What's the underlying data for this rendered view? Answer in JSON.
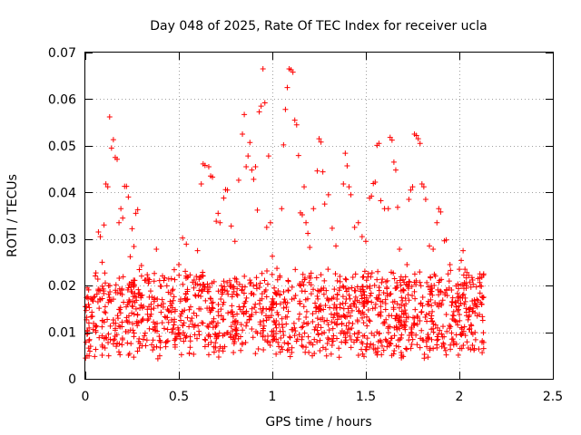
{
  "chart_data": {
    "type": "scatter",
    "title": "Day 048 of 2025, Rate Of TEC Index for receiver ucla",
    "xlabel": "GPS time / hours",
    "ylabel": "ROTI / TECUs",
    "xlim": [
      0,
      2.5
    ],
    "ylim": [
      0,
      0.07
    ],
    "xticks": [
      "0",
      "0.5",
      "1",
      "1.5",
      "2",
      "2.5"
    ],
    "xtick_values": [
      0,
      0.5,
      1,
      1.5,
      2,
      2.5
    ],
    "yticks": [
      "0",
      "0.01",
      "0.02",
      "0.03",
      "0.04",
      "0.05",
      "0.06",
      "0.07"
    ],
    "ytick_values": [
      0,
      0.01,
      0.02,
      0.03,
      0.04,
      0.05,
      0.06,
      0.07
    ],
    "grid": true,
    "marker": "+",
    "color": "#ff0000",
    "series": [
      {
        "points": [
          [
            0.0,
            0.0155
          ],
          [
            0.01,
            0.0195
          ],
          [
            0.02,
            0.0082
          ],
          [
            0.03,
            0.0133
          ],
          [
            0.04,
            0.0167
          ],
          [
            0.02,
            0.0049
          ],
          [
            0.05,
            0.0048
          ],
          [
            0.06,
            0.0113
          ],
          [
            0.07,
            0.0315
          ],
          [
            0.08,
            0.0305
          ],
          [
            0.09,
            0.025
          ],
          [
            0.1,
            0.033
          ],
          [
            0.11,
            0.0418
          ],
          [
            0.12,
            0.0412
          ],
          [
            0.13,
            0.0562
          ],
          [
            0.14,
            0.0495
          ],
          [
            0.15,
            0.0513
          ],
          [
            0.16,
            0.0475
          ],
          [
            0.17,
            0.0471
          ],
          [
            0.18,
            0.0335
          ],
          [
            0.19,
            0.0365
          ],
          [
            0.2,
            0.0345
          ],
          [
            0.21,
            0.0413
          ],
          [
            0.22,
            0.0413
          ],
          [
            0.23,
            0.039
          ],
          [
            0.24,
            0.0262
          ],
          [
            0.25,
            0.0322
          ],
          [
            0.26,
            0.0284
          ],
          [
            0.27,
            0.0355
          ],
          [
            0.28,
            0.0363
          ],
          [
            0.3,
            0.0243
          ],
          [
            0.32,
            0.0098
          ],
          [
            0.34,
            0.0155
          ],
          [
            0.36,
            0.0062
          ],
          [
            0.38,
            0.0278
          ],
          [
            0.4,
            0.0082
          ],
          [
            0.42,
            0.0211
          ],
          [
            0.44,
            0.0106
          ],
          [
            0.46,
            0.0143
          ],
          [
            0.48,
            0.0073
          ],
          [
            0.5,
            0.0245
          ],
          [
            0.52,
            0.0302
          ],
          [
            0.54,
            0.0289
          ],
          [
            0.56,
            0.0223
          ],
          [
            0.58,
            0.0195
          ],
          [
            0.6,
            0.0275
          ],
          [
            0.62,
            0.0418
          ],
          [
            0.63,
            0.0461
          ],
          [
            0.64,
            0.0458
          ],
          [
            0.66,
            0.0455
          ],
          [
            0.67,
            0.0435
          ],
          [
            0.68,
            0.0433
          ],
          [
            0.7,
            0.0338
          ],
          [
            0.71,
            0.0355
          ],
          [
            0.72,
            0.0335
          ],
          [
            0.74,
            0.0388
          ],
          [
            0.75,
            0.0406
          ],
          [
            0.76,
            0.0405
          ],
          [
            0.78,
            0.0328
          ],
          [
            0.8,
            0.0295
          ],
          [
            0.82,
            0.0426
          ],
          [
            0.84,
            0.0525
          ],
          [
            0.85,
            0.0567
          ],
          [
            0.86,
            0.0455
          ],
          [
            0.87,
            0.0478
          ],
          [
            0.88,
            0.0507
          ],
          [
            0.89,
            0.0448
          ],
          [
            0.9,
            0.0428
          ],
          [
            0.91,
            0.0455
          ],
          [
            0.92,
            0.0362
          ],
          [
            0.93,
            0.0573
          ],
          [
            0.94,
            0.0585
          ],
          [
            0.95,
            0.0665
          ],
          [
            0.96,
            0.0592
          ],
          [
            0.97,
            0.0325
          ],
          [
            0.98,
            0.0478
          ],
          [
            0.99,
            0.0335
          ],
          [
            1.0,
            0.0263
          ],
          [
            1.01,
            0.0195
          ],
          [
            1.02,
            0.0053
          ],
          [
            1.03,
            0.0078
          ],
          [
            1.04,
            0.0221
          ],
          [
            1.05,
            0.0365
          ],
          [
            1.06,
            0.0502
          ],
          [
            1.07,
            0.0578
          ],
          [
            1.08,
            0.0625
          ],
          [
            1.09,
            0.0665
          ],
          [
            1.1,
            0.0663
          ],
          [
            1.11,
            0.0658
          ],
          [
            1.12,
            0.0555
          ],
          [
            1.13,
            0.0545
          ],
          [
            1.14,
            0.0479
          ],
          [
            1.15,
            0.0356
          ],
          [
            1.16,
            0.0352
          ],
          [
            1.17,
            0.0412
          ],
          [
            1.18,
            0.0335
          ],
          [
            1.19,
            0.0312
          ],
          [
            1.2,
            0.0282
          ],
          [
            1.22,
            0.0365
          ],
          [
            1.24,
            0.0446
          ],
          [
            1.25,
            0.0515
          ],
          [
            1.26,
            0.0508
          ],
          [
            1.27,
            0.0444
          ],
          [
            1.28,
            0.0375
          ],
          [
            1.3,
            0.0395
          ],
          [
            1.32,
            0.0323
          ],
          [
            1.34,
            0.0285
          ],
          [
            1.36,
            0.0195
          ],
          [
            1.38,
            0.0418
          ],
          [
            1.39,
            0.0484
          ],
          [
            1.4,
            0.0457
          ],
          [
            1.41,
            0.0412
          ],
          [
            1.42,
            0.0395
          ],
          [
            1.44,
            0.0325
          ],
          [
            1.46,
            0.0335
          ],
          [
            1.48,
            0.0305
          ],
          [
            1.5,
            0.0295
          ],
          [
            1.52,
            0.0388
          ],
          [
            1.53,
            0.0392
          ],
          [
            1.54,
            0.0419
          ],
          [
            1.55,
            0.0422
          ],
          [
            1.56,
            0.0501
          ],
          [
            1.57,
            0.0505
          ],
          [
            1.58,
            0.0382
          ],
          [
            1.6,
            0.0365
          ],
          [
            1.62,
            0.0365
          ],
          [
            1.63,
            0.0518
          ],
          [
            1.64,
            0.0512
          ],
          [
            1.65,
            0.0465
          ],
          [
            1.66,
            0.0448
          ],
          [
            1.67,
            0.0368
          ],
          [
            1.68,
            0.0278
          ],
          [
            1.69,
            0.0045
          ],
          [
            1.7,
            0.0048
          ],
          [
            1.72,
            0.0245
          ],
          [
            1.73,
            0.0385
          ],
          [
            1.74,
            0.0405
          ],
          [
            1.75,
            0.0412
          ],
          [
            1.76,
            0.0525
          ],
          [
            1.77,
            0.0522
          ],
          [
            1.78,
            0.0515
          ],
          [
            1.79,
            0.0505
          ],
          [
            1.8,
            0.0418
          ],
          [
            1.81,
            0.0412
          ],
          [
            1.82,
            0.0385
          ],
          [
            1.84,
            0.0285
          ],
          [
            1.86,
            0.0278
          ],
          [
            1.88,
            0.0335
          ],
          [
            1.89,
            0.0365
          ],
          [
            1.9,
            0.0358
          ],
          [
            1.92,
            0.0296
          ],
          [
            1.93,
            0.0298
          ],
          [
            1.94,
            0.0225
          ],
          [
            1.95,
            0.0245
          ],
          [
            1.96,
            0.0085
          ],
          [
            1.97,
            0.0073
          ],
          [
            1.98,
            0.0165
          ],
          [
            1.99,
            0.0183
          ],
          [
            2.0,
            0.0235
          ],
          [
            2.01,
            0.0254
          ],
          [
            2.02,
            0.0275
          ],
          [
            2.03,
            0.0235
          ],
          [
            2.04,
            0.0228
          ],
          [
            2.05,
            0.0222
          ],
          [
            2.06,
            0.0063
          ],
          [
            2.07,
            0.0072
          ],
          [
            2.08,
            0.0065
          ],
          [
            2.09,
            0.0158
          ],
          [
            2.1,
            0.0215
          ],
          [
            2.11,
            0.0225
          ],
          [
            2.12,
            0.0218
          ],
          [
            2.13,
            0.0065
          ],
          [
            2.13,
            0.0175
          ],
          [
            2.13,
            0.0225
          ],
          [
            2.13,
            0.0078
          ]
        ]
      }
    ]
  }
}
